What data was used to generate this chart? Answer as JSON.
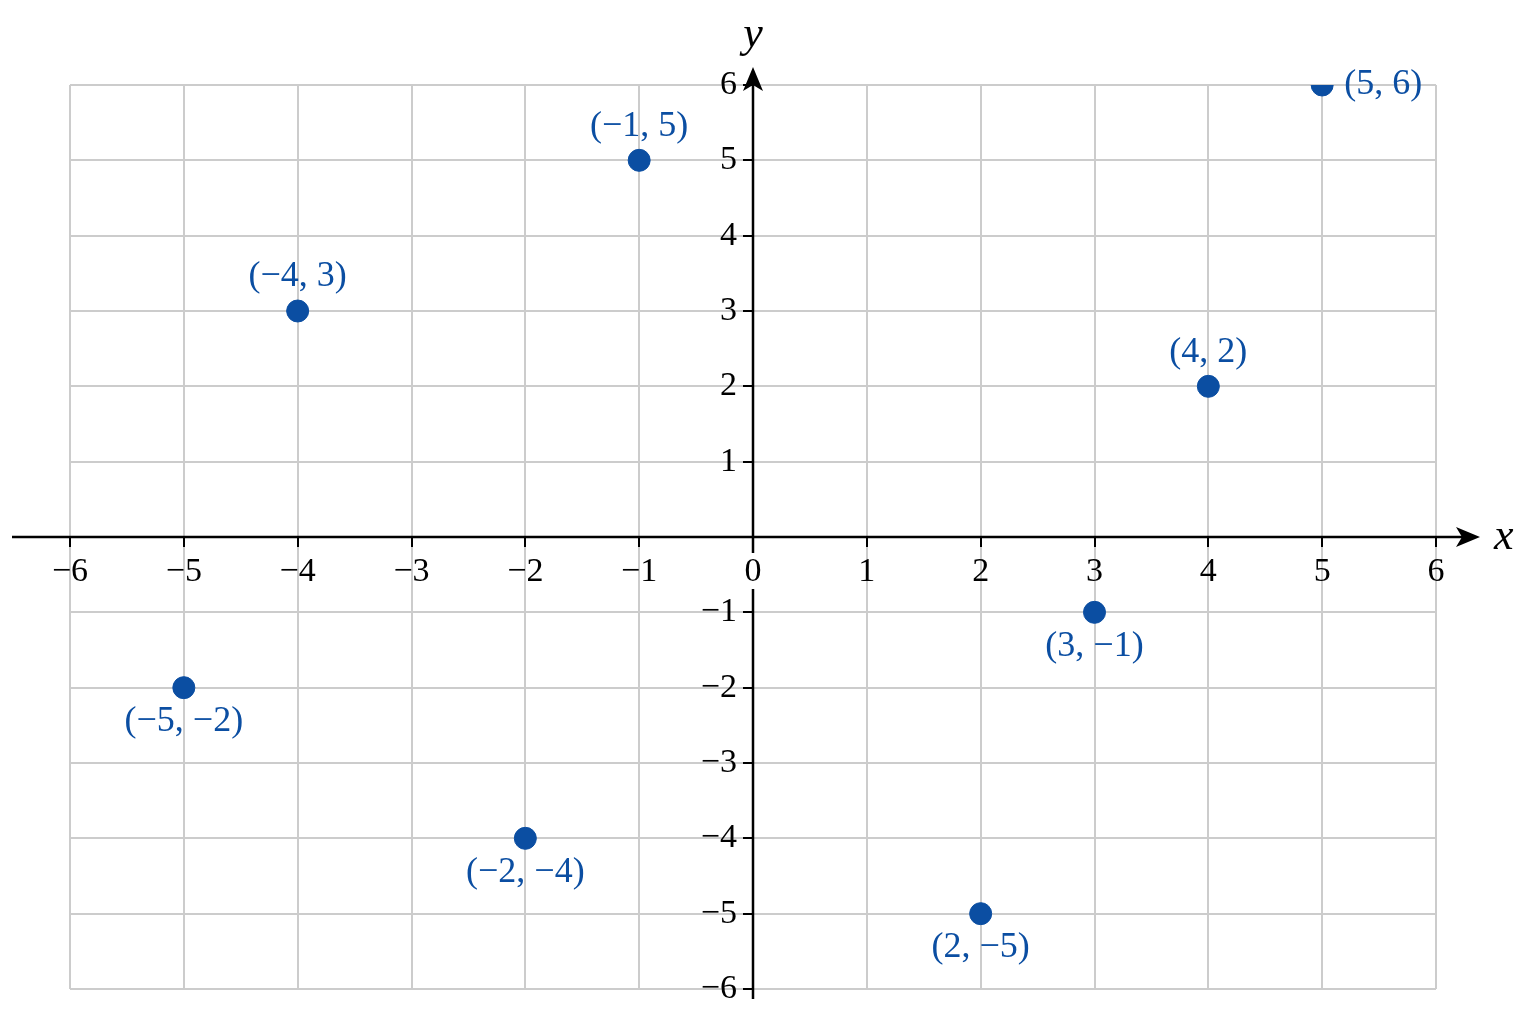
{
  "chart_data": {
    "type": "scatter",
    "xlabel": "x",
    "ylabel": "y",
    "series": [
      {
        "color": "#0b4ea2",
        "x": [
          -1,
          -4,
          5,
          4,
          -5,
          3,
          -2,
          2
        ],
        "values": [
          5,
          3,
          6,
          2,
          -2,
          -1,
          -4,
          -5
        ],
        "value_labels": [
          "(−1, 5)",
          "(−4, 3)",
          "(5, 6)",
          "(4, 2)",
          "(−5, −2)",
          "(3, −1)",
          "(−2, −4)",
          "(2, −5)"
        ]
      }
    ],
    "xlim": [
      -6,
      6
    ],
    "ylim": [
      -6,
      6
    ],
    "xticks": [
      {
        "value": -6,
        "label": "−6"
      },
      {
        "value": -5,
        "label": "−5"
      },
      {
        "value": -4,
        "label": "−4"
      },
      {
        "value": -3,
        "label": "−3"
      },
      {
        "value": -2,
        "label": "−2"
      },
      {
        "value": -1,
        "label": "−1"
      },
      0,
      1,
      2,
      3,
      4,
      5,
      6
    ],
    "yticks": [
      {
        "value": -6,
        "label": "−6"
      },
      {
        "value": -5,
        "label": "−5"
      },
      {
        "value": -4,
        "label": "−4"
      },
      {
        "value": -3,
        "label": "−3"
      },
      {
        "value": -2,
        "label": "−2"
      },
      {
        "value": -1,
        "label": "−1"
      },
      1,
      2,
      3,
      4,
      5,
      6
    ],
    "grid": true,
    "marker": "circle",
    "legend": false
  }
}
